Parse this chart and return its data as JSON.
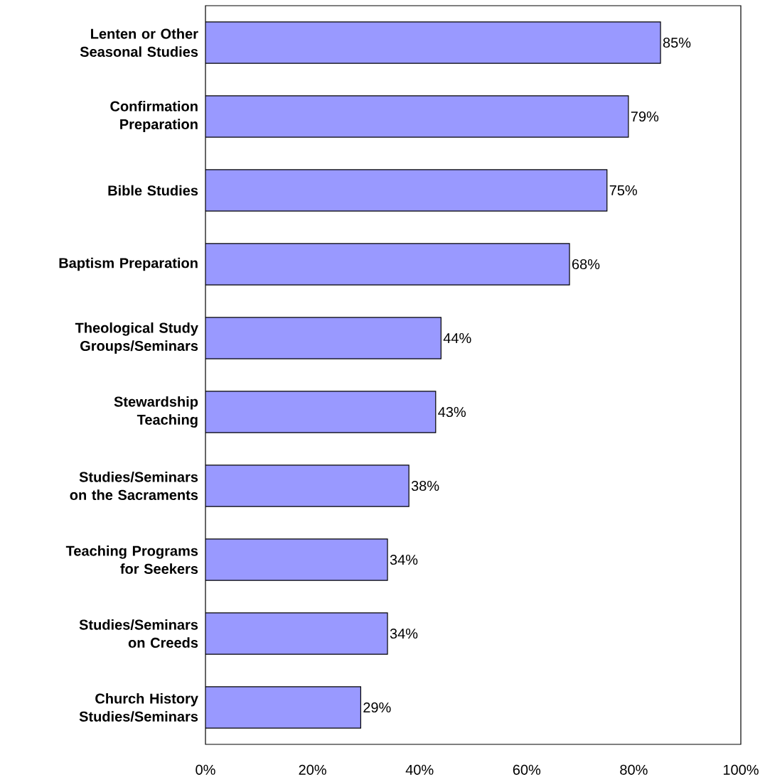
{
  "chart_data": {
    "type": "bar",
    "orientation": "horizontal",
    "categories": [
      "Lenten or Other Seasonal Studies",
      "Confirmation Preparation",
      "Bible Studies",
      "Baptism Preparation",
      "Theological Study Groups/Seminars",
      "Stewardship Teaching",
      "Studies/Seminars on the Sacraments",
      "Teaching Programs for Seekers",
      "Studies/Seminars on Creeds",
      "Church History Studies/Seminars"
    ],
    "values": [
      85,
      79,
      75,
      68,
      44,
      43,
      38,
      34,
      34,
      29
    ],
    "value_labels": [
      "85%",
      "79%",
      "75%",
      "68%",
      "44%",
      "43%",
      "38%",
      "34%",
      "34%",
      "29%"
    ],
    "color": "#9999ff",
    "xlim": [
      0,
      100
    ],
    "xticks": [
      {
        "value": 0,
        "label": "0%"
      },
      {
        "value": 20,
        "label": "20%"
      },
      {
        "value": 40,
        "label": "40%"
      },
      {
        "value": 60,
        "label": "60%"
      },
      {
        "value": 80,
        "label": "80%"
      },
      {
        "value": 100,
        "label": "100%"
      }
    ],
    "grid": false
  }
}
